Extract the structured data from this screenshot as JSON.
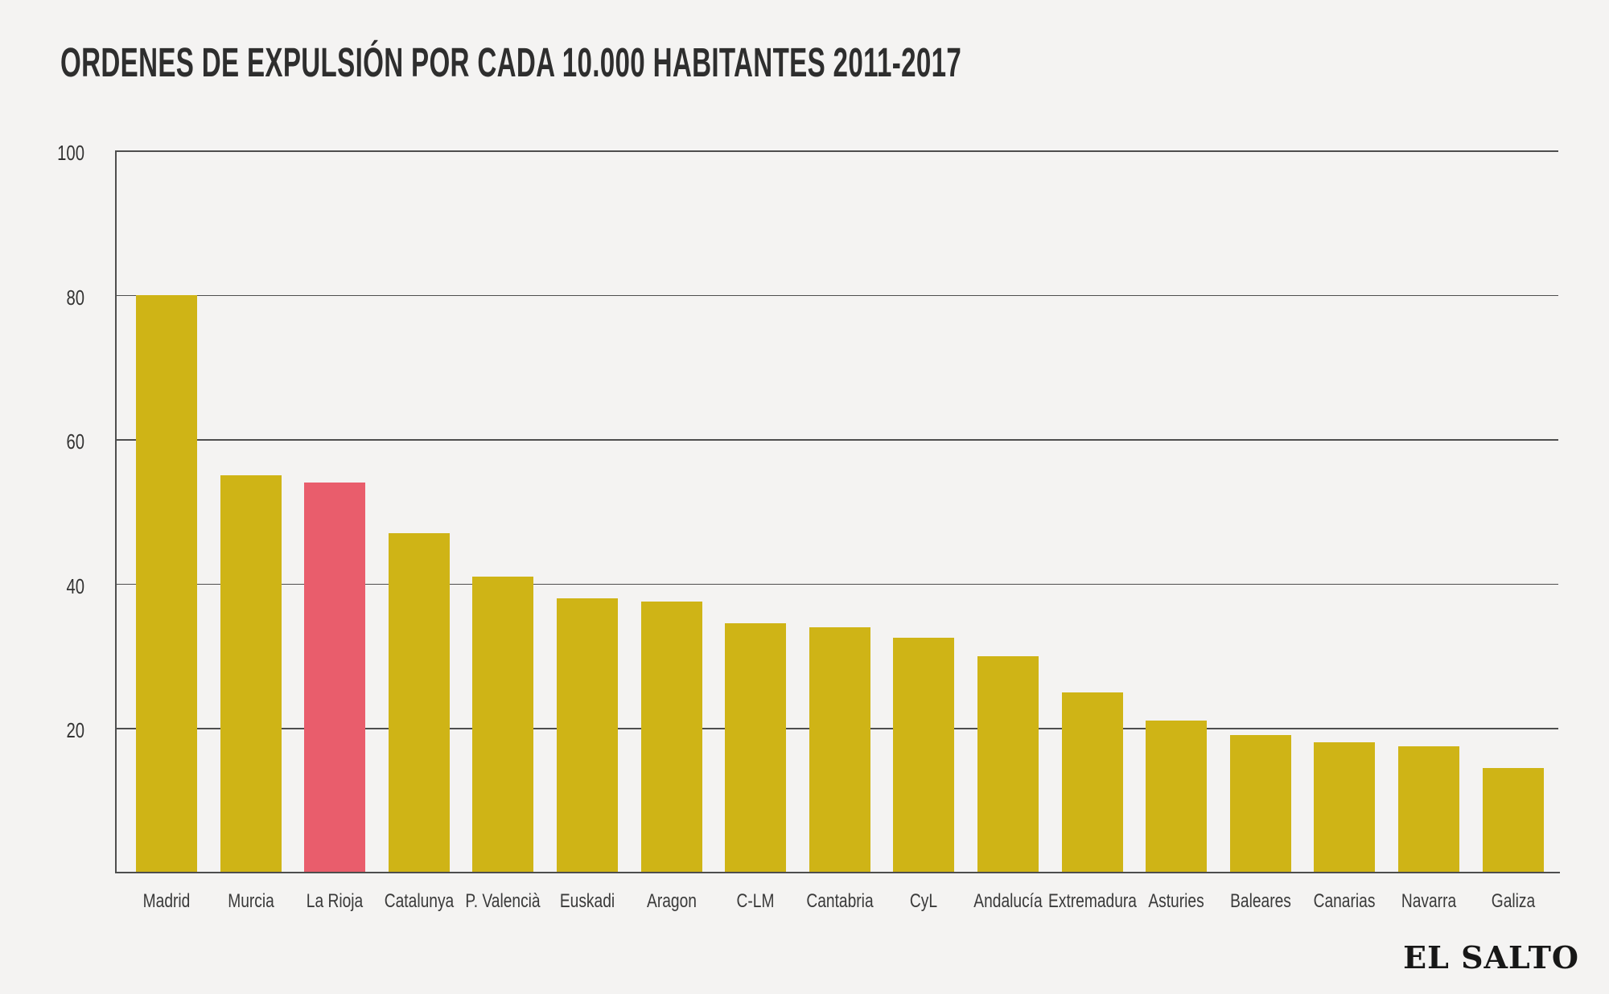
{
  "title": "ORDENES DE EXPULSIÓN POR CADA 10.000 HABITANTES 2011-2017",
  "source_logo": "EL SALTO",
  "colors": {
    "background": "#f4f3f2",
    "bar_default": "#cfb416",
    "bar_highlight": "#e95d6c",
    "gridline": "#4e4e4e",
    "title_text": "#2e2e2e",
    "label_text": "#3a3a3a"
  },
  "chart_data": {
    "type": "bar",
    "title": "ORDENES DE EXPULSIÓN POR CADA 10.000 HABITANTES 2011-2017",
    "categories": [
      "Madrid",
      "Murcia",
      "La Rioja",
      "Catalunya",
      "P. Valencià",
      "Euskadi",
      "Aragon",
      "C-LM",
      "Cantabria",
      "CyL",
      "Andalucía",
      "Extremadura",
      "Asturies",
      "Baleares",
      "Canarias",
      "Navarra",
      "Galiza"
    ],
    "values": [
      80,
      55,
      54,
      47,
      41,
      38,
      37.5,
      34.5,
      34,
      32.5,
      30,
      25,
      21,
      19,
      18,
      17.5,
      14.5
    ],
    "highlight_index": 2,
    "highlight_category": "La Rioja",
    "xlabel": "",
    "ylabel": "",
    "ylim": [
      0,
      100
    ],
    "yticks": [
      100,
      80,
      60,
      40,
      20
    ],
    "grid": true,
    "legend": false,
    "annotation": "EL SALTO"
  }
}
